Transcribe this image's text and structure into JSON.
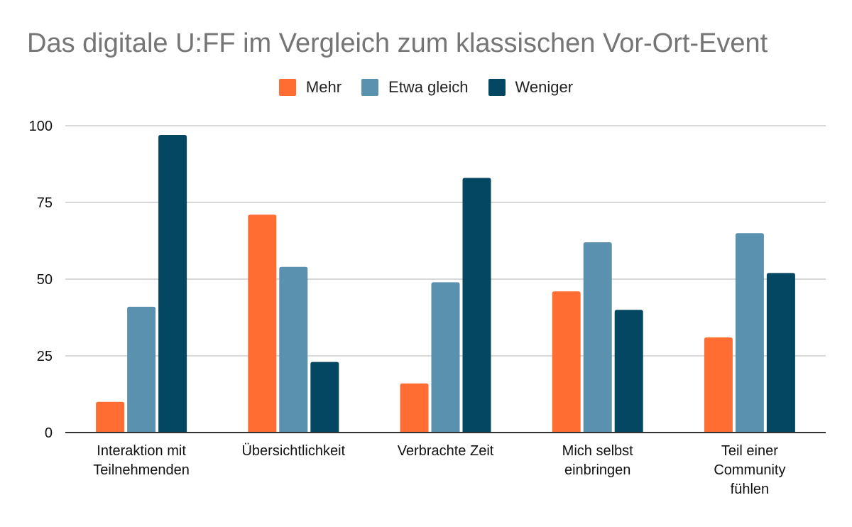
{
  "chart_data": {
    "type": "bar",
    "title": "Das digitale U:FF im Vergleich zum klassischen Vor-Ort-Event",
    "xlabel": "",
    "ylabel": "",
    "ylim": [
      0,
      100
    ],
    "yticks": [
      "0",
      "25",
      "50",
      "75",
      "100"
    ],
    "grid": true,
    "legend_position": "top",
    "categories": [
      "Interaktion mit Teilnehmenden",
      "Übersichtlichkeit",
      "Verbrachte Zeit",
      "Mich selbst einbringen",
      "Teil einer Community fühlen"
    ],
    "series": [
      {
        "name": "Mehr",
        "color": "#ff6d33",
        "values": [
          10,
          71,
          16,
          46,
          31
        ]
      },
      {
        "name": "Etwa gleich",
        "color": "#5a91ae",
        "values": [
          41,
          54,
          49,
          62,
          65
        ]
      },
      {
        "name": "Weniger",
        "color": "#034763",
        "values": [
          97,
          23,
          83,
          40,
          52
        ]
      }
    ]
  }
}
